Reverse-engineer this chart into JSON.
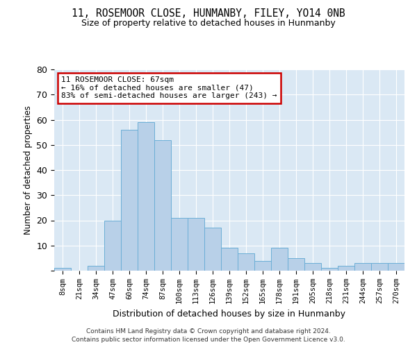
{
  "title": "11, ROSEMOOR CLOSE, HUNMANBY, FILEY, YO14 0NB",
  "subtitle": "Size of property relative to detached houses in Hunmanby",
  "xlabel": "Distribution of detached houses by size in Hunmanby",
  "ylabel": "Number of detached properties",
  "bar_color": "#b8d0e8",
  "bar_edge_color": "#6baed6",
  "background_color": "#dae8f4",
  "categories": [
    "8sqm",
    "21sqm",
    "34sqm",
    "47sqm",
    "60sqm",
    "74sqm",
    "87sqm",
    "100sqm",
    "113sqm",
    "126sqm",
    "139sqm",
    "152sqm",
    "165sqm",
    "178sqm",
    "191sqm",
    "205sqm",
    "218sqm",
    "231sqm",
    "244sqm",
    "257sqm",
    "270sqm"
  ],
  "values": [
    1,
    0,
    2,
    20,
    56,
    59,
    52,
    21,
    21,
    17,
    9,
    7,
    4,
    9,
    5,
    3,
    1,
    2,
    3,
    3,
    3
  ],
  "ylim": [
    0,
    80
  ],
  "yticks": [
    0,
    10,
    20,
    30,
    40,
    50,
    60,
    70,
    80
  ],
  "property_label": "11 ROSEMOOR CLOSE: 67sqm",
  "annotation_line1": "← 16% of detached houses are smaller (47)",
  "annotation_line2": "83% of semi-detached houses are larger (243) →",
  "annotation_box_facecolor": "#ffffff",
  "annotation_box_edgecolor": "#cc0000",
  "footer1": "Contains HM Land Registry data © Crown copyright and database right 2024.",
  "footer2": "Contains public sector information licensed under the Open Government Licence v3.0."
}
